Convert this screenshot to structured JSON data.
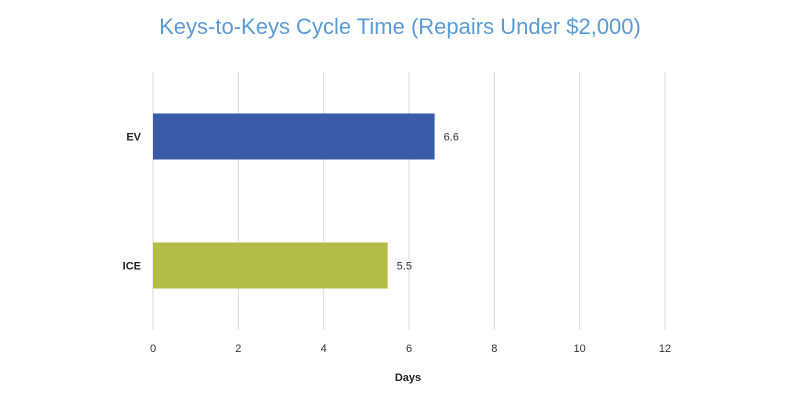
{
  "chart_data": {
    "type": "bar",
    "orientation": "horizontal",
    "title": "Keys-to-Keys Cycle Time (Repairs Under $2,000)",
    "xlabel": "Days",
    "ylabel": "",
    "categories": [
      "EV",
      "ICE"
    ],
    "values": [
      6.6,
      5.5
    ],
    "data_labels": [
      "6.6",
      "5.5"
    ],
    "xlim": [
      0,
      12
    ],
    "x_ticks": [
      0,
      2,
      4,
      6,
      8,
      10,
      12
    ],
    "x_tick_labels": [
      "0",
      "2",
      "4",
      "6",
      "8",
      "10",
      "12"
    ],
    "grid": "vertical",
    "legend": "none"
  },
  "colors": {
    "title": "#5b9bd5",
    "bars": [
      "#3a5ba8",
      "#b1bb45"
    ],
    "grid": "#d9d9d9"
  }
}
